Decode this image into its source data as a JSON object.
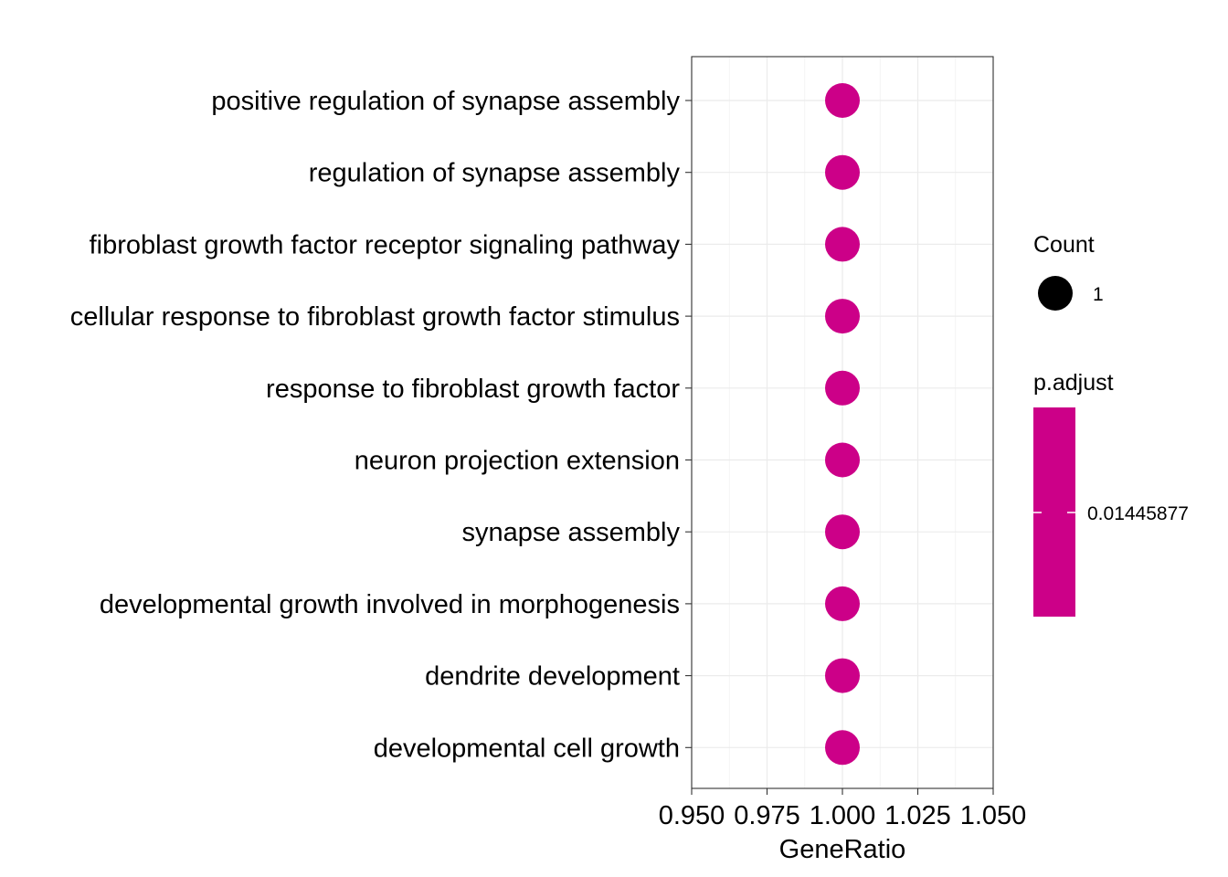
{
  "chart_data": {
    "type": "scatter",
    "title": "",
    "xlabel": "GeneRatio",
    "ylabel": "",
    "xlim": [
      0.95,
      1.05
    ],
    "x_ticks": [
      "0.950",
      "0.975",
      "1.000",
      "1.025",
      "1.050"
    ],
    "grid": true,
    "categories": [
      "positive regulation of synapse assembly",
      "regulation of synapse assembly",
      "fibroblast growth factor receptor signaling pathway",
      "cellular response to fibroblast growth factor stimulus",
      "response to fibroblast growth factor",
      "neuron projection extension",
      "synapse assembly",
      "developmental growth involved in morphogenesis",
      "dendrite development",
      "developmental cell growth"
    ],
    "points": [
      {
        "category": "positive regulation of synapse assembly",
        "x": 1.0,
        "count": 1,
        "p_adjust": 0.01445877
      },
      {
        "category": "regulation of synapse assembly",
        "x": 1.0,
        "count": 1,
        "p_adjust": 0.01445877
      },
      {
        "category": "fibroblast growth factor receptor signaling pathway",
        "x": 1.0,
        "count": 1,
        "p_adjust": 0.01445877
      },
      {
        "category": "cellular response to fibroblast growth factor stimulus",
        "x": 1.0,
        "count": 1,
        "p_adjust": 0.01445877
      },
      {
        "category": "response to fibroblast growth factor",
        "x": 1.0,
        "count": 1,
        "p_adjust": 0.01445877
      },
      {
        "category": "neuron projection extension",
        "x": 1.0,
        "count": 1,
        "p_adjust": 0.01445877
      },
      {
        "category": "synapse assembly",
        "x": 1.0,
        "count": 1,
        "p_adjust": 0.01445877
      },
      {
        "category": "developmental growth involved in morphogenesis",
        "x": 1.0,
        "count": 1,
        "p_adjust": 0.01445877
      },
      {
        "category": "dendrite development",
        "x": 1.0,
        "count": 1,
        "p_adjust": 0.01445877
      },
      {
        "category": "developmental cell growth",
        "x": 1.0,
        "count": 1,
        "p_adjust": 0.01445877
      }
    ],
    "point_color": "#CC0088",
    "legend": {
      "placement": "right",
      "size_title": "Count",
      "size_label": "1",
      "color_title": "p.adjust",
      "color_label": "0.01445877",
      "color_bar_color": "#CC0088",
      "size_key_color": "#000000"
    }
  }
}
